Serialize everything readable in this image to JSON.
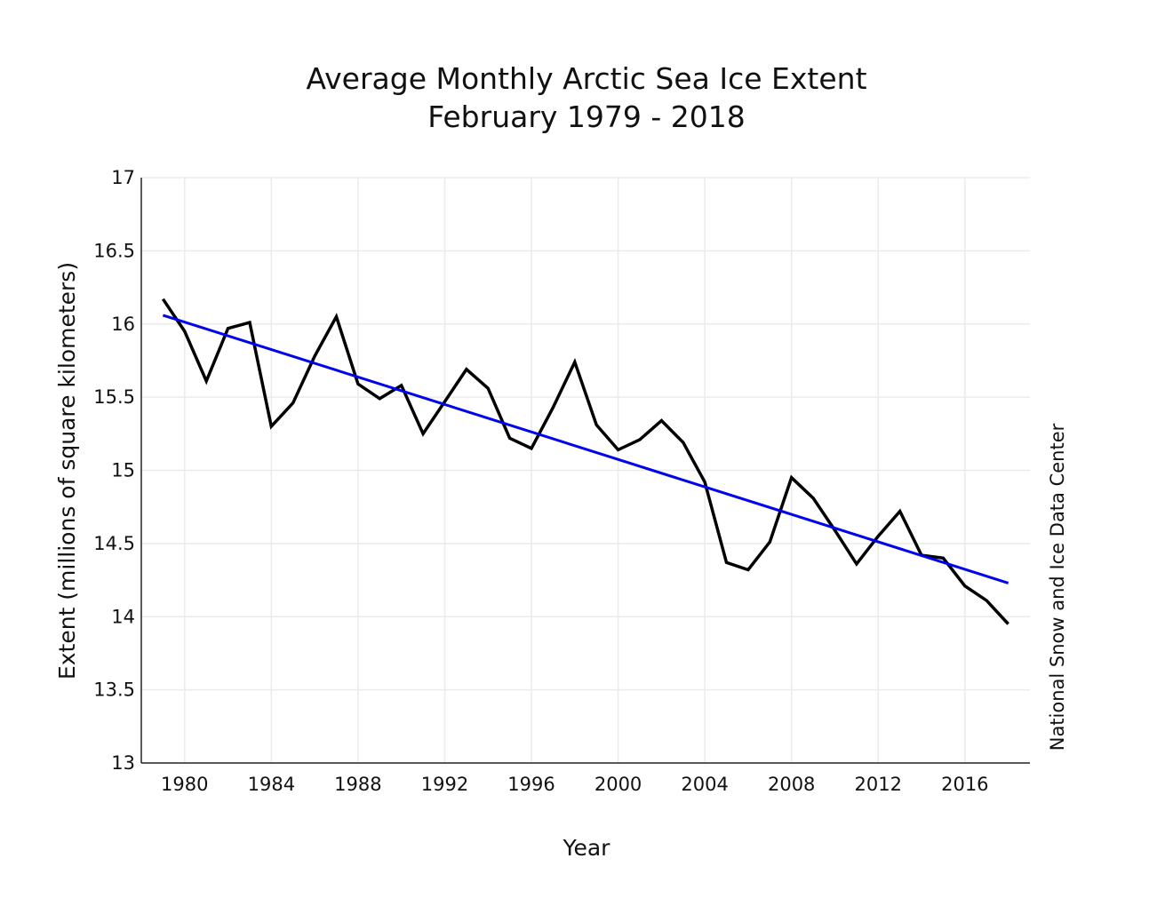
{
  "chart_data": {
    "type": "line",
    "title": "Average Monthly Arctic Sea Ice Extent",
    "subtitle": "February 1979 - 2018",
    "xlabel": "Year",
    "ylabel": "Extent (millions of square kilometers)",
    "source": "National Snow and Ice Data Center",
    "xlim": [
      1978,
      2019
    ],
    "ylim": [
      13,
      17
    ],
    "x_ticks": [
      1980,
      1984,
      1988,
      1992,
      1996,
      2000,
      2004,
      2008,
      2012,
      2016
    ],
    "y_ticks": [
      13,
      13.5,
      14,
      14.5,
      15,
      15.5,
      16,
      16.5,
      17
    ],
    "grid": true,
    "series": [
      {
        "name": "extent",
        "color": "#000000",
        "x": [
          1979,
          1980,
          1981,
          1982,
          1983,
          1984,
          1985,
          1986,
          1987,
          1988,
          1989,
          1990,
          1991,
          1992,
          1993,
          1994,
          1995,
          1996,
          1997,
          1998,
          1999,
          2000,
          2001,
          2002,
          2003,
          2004,
          2005,
          2006,
          2007,
          2008,
          2009,
          2010,
          2011,
          2012,
          2013,
          2014,
          2015,
          2016,
          2017,
          2018
        ],
        "values": [
          16.17,
          15.95,
          15.61,
          15.97,
          16.01,
          15.3,
          15.46,
          15.78,
          16.05,
          15.59,
          15.49,
          15.58,
          15.25,
          15.47,
          15.69,
          15.56,
          15.22,
          15.15,
          15.43,
          15.74,
          15.31,
          15.14,
          15.21,
          15.34,
          15.19,
          14.92,
          14.37,
          14.32,
          14.51,
          14.95,
          14.81,
          14.59,
          14.36,
          14.55,
          14.72,
          14.42,
          14.4,
          14.21,
          14.11,
          13.95
        ]
      },
      {
        "name": "trend",
        "color": "#0000ee",
        "x": [
          1979,
          2018
        ],
        "values": [
          16.06,
          14.23
        ]
      }
    ]
  }
}
